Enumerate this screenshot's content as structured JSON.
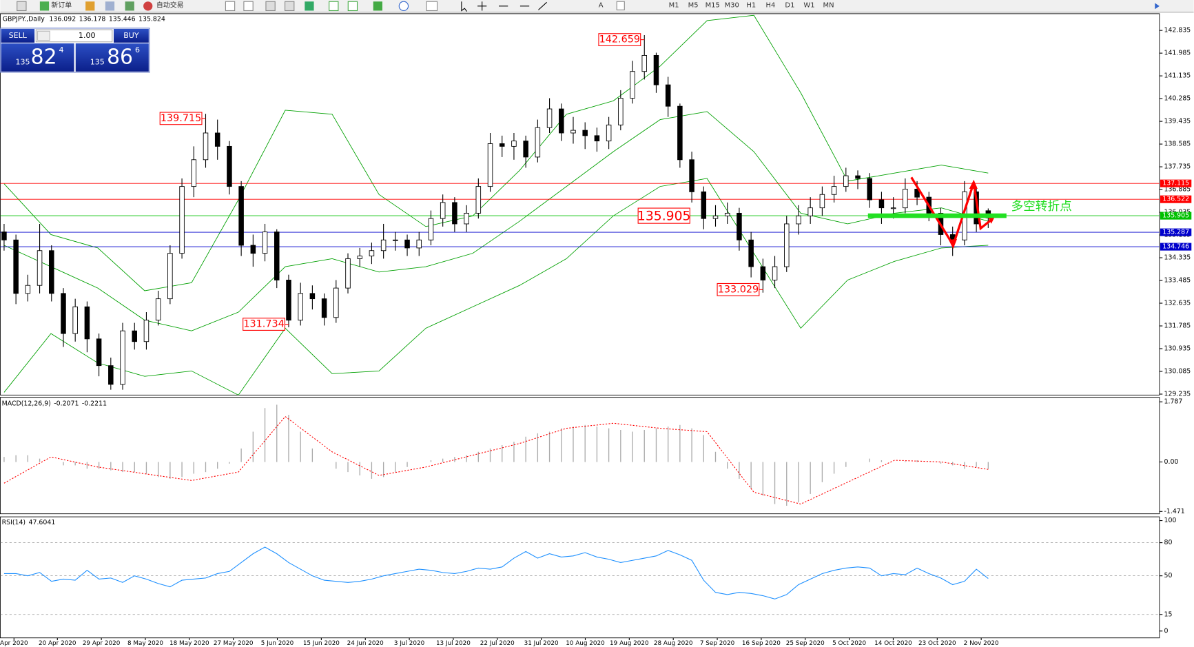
{
  "toolbar": {
    "new_order": "新订单",
    "auto_trading": "自动交易",
    "timeframes": [
      "M1",
      "M5",
      "M15",
      "M30",
      "H1",
      "H4",
      "D1",
      "W1",
      "MN"
    ]
  },
  "trade_panel": {
    "sell": "SELL",
    "buy": "BUY",
    "lot": "1.00",
    "sell_price": {
      "big": "135",
      "main": "82",
      "small": "4"
    },
    "buy_price": {
      "big": "135",
      "main": "86",
      "small": "6"
    }
  },
  "chart_data": {
    "type": "candlestick",
    "title": "GBPJPY.,Daily",
    "up_color": "#ffffff",
    "down_color": "#000000",
    "ylim": [
      129.2,
      143.46
    ],
    "yticks": [
      142.835,
      141.985,
      141.135,
      140.285,
      139.435,
      138.585,
      137.735,
      136.885,
      136.035,
      135.185,
      134.335,
      133.485,
      132.635,
      131.785,
      130.935,
      130.085,
      129.235
    ],
    "open": [
      135.3,
      135.0,
      133.0,
      133.3,
      134.6,
      133.0,
      131.5,
      132.5,
      131.3,
      130.3,
      129.6,
      131.6,
      131.2,
      132.0,
      132.8,
      134.5,
      137.0,
      138.0,
      139.0,
      138.5,
      137.0,
      134.8,
      134.5,
      135.3,
      133.5,
      132.0,
      133.0,
      132.8,
      132.1,
      133.2,
      134.3,
      134.4,
      134.6,
      135.0,
      135.0,
      134.7,
      135.0,
      135.8,
      136.4,
      135.6,
      136.0,
      137.0,
      138.6,
      138.5,
      138.7,
      138.1,
      139.2,
      139.9,
      139.0,
      139.1,
      138.9,
      138.7,
      139.3,
      140.3,
      141.3,
      141.9,
      140.8,
      140.0,
      138.0,
      136.8,
      135.8,
      135.9,
      136.0,
      135.0,
      134.0,
      133.5,
      134.0,
      135.6,
      135.9,
      136.2,
      136.7,
      137.0,
      137.4,
      137.3,
      136.5,
      136.2,
      136.2,
      136.9,
      136.6,
      136.0,
      135.2,
      135.0,
      136.8,
      136.092
    ],
    "high": [
      135.6,
      135.2,
      133.7,
      135.6,
      134.8,
      133.2,
      132.8,
      132.7,
      131.5,
      130.6,
      131.9,
      131.9,
      132.3,
      133.1,
      134.8,
      137.3,
      138.5,
      139.715,
      139.5,
      138.7,
      137.2,
      135.2,
      135.6,
      135.4,
      133.7,
      133.4,
      133.3,
      133.0,
      133.5,
      134.5,
      134.7,
      134.9,
      135.6,
      135.3,
      135.2,
      135.3,
      136.1,
      136.7,
      136.6,
      136.3,
      137.3,
      139.0,
      138.9,
      139.0,
      138.9,
      139.5,
      140.3,
      140.1,
      139.6,
      139.4,
      139.2,
      139.6,
      140.6,
      141.7,
      142.659,
      142.0,
      141.1,
      140.1,
      138.3,
      137.0,
      136.3,
      136.4,
      136.2,
      135.3,
      134.3,
      134.4,
      135.9,
      136.3,
      136.6,
      137.0,
      137.4,
      137.7,
      137.6,
      137.5,
      136.8,
      136.6,
      137.3,
      137.2,
      136.8,
      136.2,
      135.5,
      137.2,
      137.0,
      136.178
    ],
    "low": [
      134.6,
      132.6,
      132.7,
      133.0,
      132.7,
      131.0,
      131.2,
      130.8,
      129.9,
      129.4,
      129.4,
      130.9,
      130.9,
      131.8,
      132.6,
      134.3,
      136.6,
      137.7,
      138.0,
      136.7,
      134.4,
      134.0,
      134.2,
      133.2,
      131.734,
      131.8,
      132.4,
      131.8,
      131.9,
      133.0,
      134.0,
      134.1,
      134.3,
      134.6,
      134.4,
      134.4,
      134.8,
      135.5,
      135.3,
      135.3,
      135.8,
      136.8,
      138.1,
      138.0,
      137.7,
      137.9,
      139.0,
      138.7,
      138.6,
      138.4,
      138.3,
      138.4,
      139.1,
      140.1,
      141.0,
      140.5,
      139.6,
      137.7,
      136.4,
      135.4,
      135.5,
      135.6,
      134.6,
      133.6,
      133.029,
      133.2,
      133.8,
      135.2,
      135.6,
      135.9,
      136.4,
      136.8,
      136.9,
      136.2,
      135.6,
      135.8,
      136.0,
      136.3,
      135.7,
      134.8,
      134.4,
      134.8,
      135.3,
      135.446
    ],
    "close": [
      135.0,
      133.0,
      133.3,
      134.6,
      133.0,
      131.5,
      132.5,
      131.3,
      130.3,
      129.6,
      131.6,
      131.2,
      132.0,
      132.8,
      134.5,
      137.0,
      138.0,
      139.0,
      138.5,
      137.0,
      134.8,
      134.5,
      135.3,
      133.5,
      132.0,
      133.0,
      132.8,
      132.1,
      133.2,
      134.3,
      134.4,
      134.6,
      135.0,
      135.0,
      134.7,
      135.0,
      135.8,
      136.4,
      135.6,
      136.0,
      137.0,
      138.6,
      138.5,
      138.7,
      138.1,
      139.2,
      139.9,
      139.0,
      139.1,
      138.9,
      138.7,
      139.3,
      140.3,
      141.3,
      141.9,
      140.8,
      140.0,
      138.0,
      136.8,
      135.8,
      135.9,
      136.0,
      135.0,
      134.0,
      133.5,
      134.0,
      135.6,
      135.9,
      136.2,
      136.7,
      137.0,
      137.4,
      137.3,
      136.5,
      136.2,
      136.2,
      136.9,
      136.6,
      136.0,
      135.2,
      135.0,
      136.8,
      135.6,
      135.824
    ],
    "bands": {
      "color": "#00a000",
      "upper": [
        137.1,
        135.2,
        134.7,
        133.1,
        133.4,
        136.5,
        139.85,
        139.7,
        136.7,
        135.5,
        135.9,
        137.6,
        139.7,
        140.2,
        141.5,
        143.2,
        143.4,
        140.5,
        137.2,
        137.5,
        137.8,
        137.5
      ],
      "middle": [
        134.8,
        134.0,
        133.2,
        132.0,
        131.6,
        132.3,
        134.0,
        134.3,
        133.8,
        134.0,
        134.5,
        135.7,
        137.0,
        138.3,
        139.5,
        139.8,
        138.3,
        136.0,
        135.6,
        136.0,
        136.2,
        135.7
      ],
      "lower": [
        129.3,
        131.5,
        130.4,
        129.9,
        130.1,
        129.2,
        131.7,
        130.0,
        130.1,
        131.7,
        132.5,
        133.3,
        134.3,
        135.9,
        137.0,
        137.3,
        134.5,
        131.7,
        133.5,
        134.2,
        134.7,
        134.8
      ]
    },
    "levels": [
      {
        "value": 137.115,
        "color": "#ff0000"
      },
      {
        "value": 136.522,
        "color": "#ff0000"
      },
      {
        "value": 135.905,
        "color": "#00c000"
      },
      {
        "value": 135.287,
        "color": "#0000cc"
      },
      {
        "value": 134.746,
        "color": "#0000cc"
      }
    ],
    "annotations": [
      142.659,
      139.715,
      131.734,
      133.029
    ],
    "pivot_text": "多空转折点",
    "dates": [
      "Apr 2020",
      "20 Apr 2020",
      "29 Apr 2020",
      "8 May 2020",
      "18 May 2020",
      "27 May 2020",
      "5 Jun 2020",
      "15 Jun 2020",
      "24 Jun 2020",
      "3 Jul 2020",
      "13 Jul 2020",
      "22 Jul 2020",
      "31 Jul 2020",
      "10 Aug 2020",
      "19 Aug 2020",
      "28 Aug 2020",
      "7 Sep 2020",
      "16 Sep 2020",
      "25 Sep 2020",
      "5 Oct 2020",
      "14 Oct 2020",
      "23 Oct 2020",
      "2 Nov 2020"
    ],
    "macd": {
      "name": "MACD(12,26,9)",
      "ylim": [
        -1.54,
        1.92
      ],
      "yticks": [
        1.787,
        {
          "value": 0,
          "label": "0.00"
        },
        -1.471
      ],
      "histogram": [
        0.15,
        0.2,
        0.2,
        0.1,
        0.0,
        -0.1,
        -0.1,
        -0.2,
        -0.2,
        -0.25,
        -0.3,
        -0.3,
        -0.35,
        -0.45,
        -0.5,
        -0.45,
        -0.35,
        -0.3,
        -0.2,
        -0.05,
        0.4,
        0.9,
        1.6,
        1.7,
        1.4,
        0.9,
        0.4,
        0.0,
        -0.2,
        -0.3,
        -0.4,
        -0.5,
        -0.45,
        -0.3,
        -0.15,
        0.0,
        0.05,
        0.1,
        0.15,
        0.2,
        0.3,
        0.4,
        0.5,
        0.6,
        0.75,
        0.85,
        0.9,
        1.0,
        1.05,
        1.1,
        1.05,
        1.0,
        0.95,
        0.9,
        0.95,
        1.0,
        1.05,
        1.1,
        1.0,
        0.8,
        0.3,
        -0.2,
        -0.5,
        -0.8,
        -1.0,
        -1.25,
        -1.3,
        -1.2,
        -0.95,
        -0.6,
        -0.35,
        -0.15,
        0.0,
        0.1,
        0.05,
        0.0,
        0.02,
        0.05,
        0.0,
        -0.05,
        -0.1,
        -0.2,
        -0.15,
        -0.2071
      ],
      "signal": [
        -0.63,
        0.15,
        -0.15,
        -0.35,
        -0.55,
        -0.3,
        1.35,
        0.3,
        -0.4,
        -0.15,
        0.2,
        0.55,
        1.0,
        1.15,
        1.0,
        0.9,
        -0.9,
        -1.25,
        -0.6,
        0.05,
        0.0,
        -0.2211
      ]
    },
    "rsi": {
      "name": "RSI(14)",
      "ylim": [
        -6.2,
        103.4
      ],
      "yticks": [
        100,
        80,
        50,
        15,
        0
      ],
      "levels": [
        80,
        50,
        15
      ],
      "color": "#1e90ff",
      "values": [
        52,
        52,
        50,
        53,
        45,
        47,
        46,
        55,
        47,
        48,
        44,
        50,
        47,
        43,
        40,
        46,
        47,
        48,
        52,
        54,
        62,
        70,
        76,
        70,
        62,
        56,
        50,
        46,
        45,
        44,
        45,
        47,
        50,
        52,
        54,
        56,
        55,
        53,
        52,
        54,
        57,
        56,
        58,
        66,
        72,
        66,
        70,
        67,
        68,
        71,
        67,
        65,
        62,
        64,
        66,
        68,
        73,
        69,
        64,
        46,
        35,
        33,
        35,
        34,
        32,
        29,
        33,
        42,
        47,
        52,
        55,
        57,
        58,
        57,
        50,
        52,
        51,
        57,
        52,
        48,
        42,
        45,
        56,
        47.6041
      ]
    }
  }
}
